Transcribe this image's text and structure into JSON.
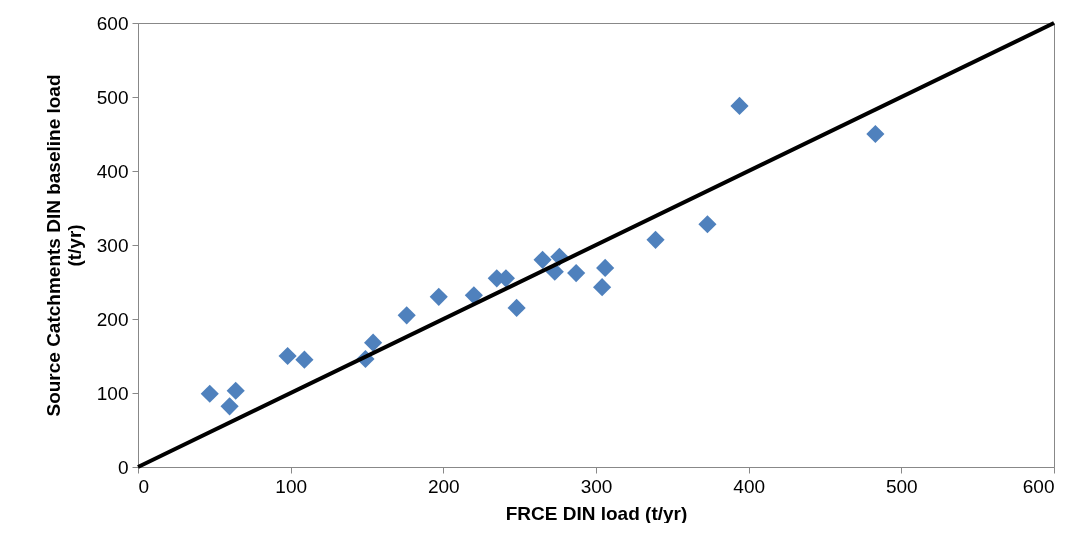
{
  "chart_data": {
    "type": "scatter",
    "xlabel": "FRCE DIN load (t/yr)",
    "ylabel": "Source Catchments  DIN baseline load (t/yr)",
    "xlim": [
      0,
      600
    ],
    "ylim": [
      0,
      600
    ],
    "xticks": [
      0,
      100,
      200,
      300,
      400,
      500,
      600
    ],
    "yticks": [
      0,
      100,
      200,
      300,
      400,
      500,
      600
    ],
    "grid": false,
    "series": [
      {
        "marker": "diamond",
        "color": "#4f81bd",
        "x": [
          47,
          60,
          64,
          98,
          109,
          149,
          154,
          176,
          197,
          220,
          235,
          241,
          248,
          265,
          273,
          276,
          287,
          304,
          306,
          339,
          373,
          394,
          483
        ],
        "values": [
          99,
          82,
          103,
          150,
          145,
          146,
          168,
          205,
          230,
          232,
          255,
          255,
          215,
          280,
          264,
          284,
          262,
          243,
          269,
          307,
          328,
          488,
          450
        ]
      },
      {
        "type": "line",
        "color": "#000000",
        "x": [
          0,
          600
        ],
        "values": [
          0,
          600
        ]
      }
    ]
  }
}
